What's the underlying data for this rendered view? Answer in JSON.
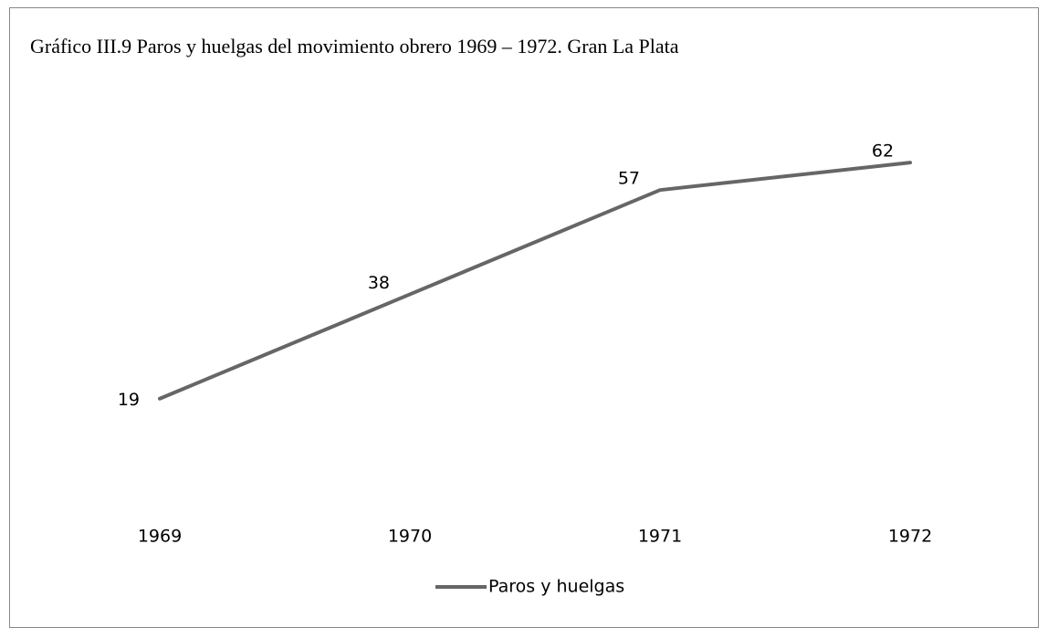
{
  "chart_data": {
    "type": "line",
    "title": "Gráfico III.9 Paros y huelgas del movimiento obrero 1969 – 1972. Gran La Plata",
    "categories": [
      "1969",
      "1970",
      "1971",
      "1972"
    ],
    "series": [
      {
        "name": "Paros y huelgas",
        "color": "#666666",
        "values": [
          19,
          38,
          57,
          62
        ]
      }
    ],
    "ylim": [
      0,
      70
    ],
    "legend": "bottom"
  }
}
